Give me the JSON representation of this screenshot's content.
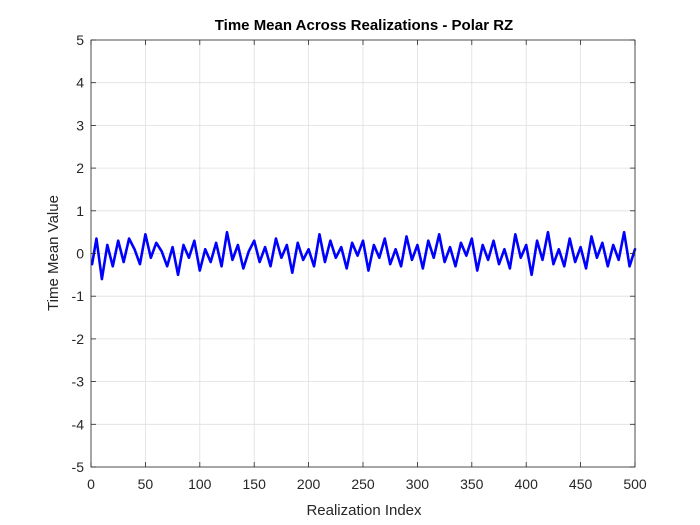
{
  "chart_data": {
    "type": "line",
    "title": "Time Mean Across Realizations - Polar RZ",
    "xlabel": "Realization Index",
    "ylabel": "Time Mean Value",
    "xlim": [
      0,
      500
    ],
    "ylim": [
      -5,
      5
    ],
    "xticks": [
      0,
      50,
      100,
      150,
      200,
      250,
      300,
      350,
      400,
      450,
      500
    ],
    "yticks": [
      -5,
      -4,
      -3,
      -2,
      -1,
      0,
      1,
      2,
      3,
      4,
      5
    ],
    "grid": true,
    "series": [
      {
        "color": "#0000ff",
        "x": [
          1,
          5,
          10,
          15,
          20,
          25,
          30,
          35,
          40,
          45,
          50,
          55,
          60,
          65,
          70,
          75,
          80,
          85,
          90,
          95,
          100,
          105,
          110,
          115,
          120,
          125,
          130,
          135,
          140,
          145,
          150,
          155,
          160,
          165,
          170,
          175,
          180,
          185,
          190,
          195,
          200,
          205,
          210,
          215,
          220,
          225,
          230,
          235,
          240,
          245,
          250,
          255,
          260,
          265,
          270,
          275,
          280,
          285,
          290,
          295,
          300,
          305,
          310,
          315,
          320,
          325,
          330,
          335,
          340,
          345,
          350,
          355,
          360,
          365,
          370,
          375,
          380,
          385,
          390,
          395,
          400,
          405,
          410,
          415,
          420,
          425,
          430,
          435,
          440,
          445,
          450,
          455,
          460,
          465,
          470,
          475,
          480,
          485,
          490,
          495,
          500
        ],
        "values": [
          -0.25,
          0.35,
          -0.6,
          0.2,
          -0.3,
          0.3,
          -0.2,
          0.35,
          0.1,
          -0.25,
          0.45,
          -0.1,
          0.25,
          0.05,
          -0.3,
          0.15,
          -0.5,
          0.2,
          -0.1,
          0.3,
          -0.4,
          0.1,
          -0.2,
          0.25,
          -0.3,
          0.5,
          -0.15,
          0.2,
          -0.35,
          0.05,
          0.3,
          -0.2,
          0.15,
          -0.3,
          0.35,
          -0.1,
          0.2,
          -0.45,
          0.25,
          -0.15,
          0.1,
          -0.3,
          0.45,
          -0.2,
          0.3,
          -0.1,
          0.15,
          -0.35,
          0.25,
          -0.05,
          0.3,
          -0.4,
          0.2,
          -0.1,
          0.35,
          -0.25,
          0.1,
          -0.3,
          0.4,
          -0.15,
          0.2,
          -0.35,
          0.3,
          -0.1,
          0.45,
          -0.2,
          0.15,
          -0.3,
          0.25,
          -0.05,
          0.35,
          -0.4,
          0.2,
          -0.15,
          0.3,
          -0.25,
          0.1,
          -0.35,
          0.45,
          -0.1,
          0.2,
          -0.5,
          0.3,
          -0.15,
          0.5,
          -0.25,
          0.1,
          -0.3,
          0.35,
          -0.2,
          0.15,
          -0.35,
          0.4,
          -0.1,
          0.25,
          -0.3,
          0.2,
          -0.15,
          0.5,
          -0.3,
          0.1
        ]
      }
    ]
  }
}
